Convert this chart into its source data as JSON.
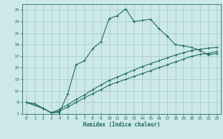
{
  "xlabel": "Humidex (Indice chaleur)",
  "bg_color": "#cce8e8",
  "grid_color": "#aacccc",
  "line_color": "#1a6b5a",
  "xlim": [
    -0.5,
    23.5
  ],
  "ylim": [
    7,
    26
  ],
  "xticks": [
    0,
    1,
    2,
    3,
    4,
    5,
    6,
    7,
    8,
    9,
    10,
    11,
    12,
    13,
    14,
    15,
    16,
    17,
    18,
    19,
    20,
    21,
    22,
    23
  ],
  "yticks": [
    7,
    9,
    11,
    13,
    15,
    17,
    19,
    21,
    23,
    25
  ],
  "line1_x": [
    0,
    1,
    2,
    3,
    4,
    5,
    6,
    7,
    8,
    9,
    10,
    11,
    12,
    13,
    14,
    15,
    16,
    17,
    18,
    19,
    20,
    21,
    22,
    23
  ],
  "line1_y": [
    9,
    8.8,
    8.0,
    7.2,
    7.3,
    10.5,
    15.5,
    16.2,
    18.3,
    19.5,
    23.5,
    24.0,
    25.2,
    23.0,
    23.2,
    23.4,
    21.8,
    20.5,
    19.0,
    18.8,
    18.5,
    18.0,
    17.2,
    17.5
  ],
  "line2_x": [
    0,
    2,
    3,
    4,
    5,
    6,
    7,
    8,
    9,
    10,
    11,
    12,
    13,
    14,
    15,
    16,
    17,
    18,
    19,
    20,
    21,
    22,
    23
  ],
  "line2_y": [
    9,
    8.0,
    7.2,
    7.5,
    8.2,
    9.0,
    9.8,
    10.5,
    11.2,
    12.0,
    12.5,
    13.0,
    13.5,
    14.0,
    14.5,
    15.0,
    15.5,
    16.0,
    16.5,
    17.0,
    17.3,
    17.5,
    17.8
  ],
  "line3_x": [
    0,
    2,
    3,
    4,
    5,
    6,
    7,
    8,
    9,
    10,
    11,
    12,
    13,
    14,
    15,
    16,
    17,
    18,
    19,
    20,
    21,
    22,
    23
  ],
  "line3_y": [
    9,
    8.0,
    7.2,
    7.8,
    8.6,
    9.5,
    10.3,
    11.2,
    12.0,
    12.8,
    13.4,
    14.0,
    14.6,
    15.2,
    15.7,
    16.2,
    16.7,
    17.2,
    17.6,
    18.0,
    18.2,
    18.4,
    18.5
  ]
}
